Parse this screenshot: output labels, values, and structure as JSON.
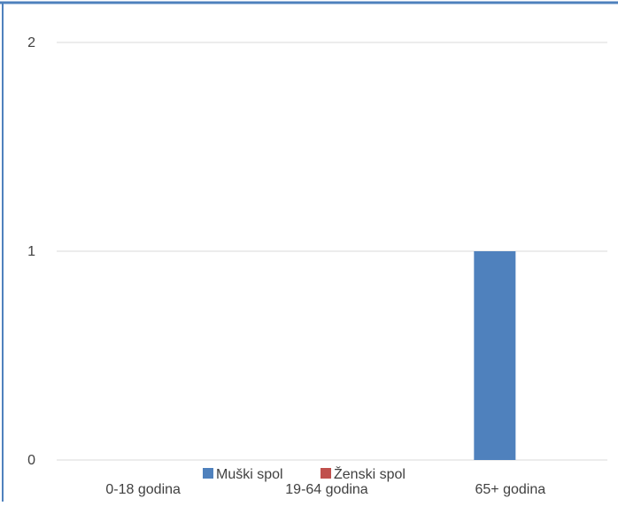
{
  "chart_data": {
    "type": "bar",
    "categories": [
      "0-18 godina",
      "19-64 godina",
      "65+ godina"
    ],
    "series": [
      {
        "name": "Muški spol",
        "values": [
          0,
          0,
          1
        ],
        "color": "#4F81BD"
      },
      {
        "name": "Ženski spol",
        "values": [
          0,
          0,
          0
        ],
        "color": "#C0504D"
      }
    ],
    "y_ticks": [
      "0",
      "1",
      "2"
    ],
    "ylim": [
      0,
      2
    ],
    "grid": true,
    "legend_position": "bottom",
    "title": "",
    "xlabel": "",
    "ylabel": ""
  },
  "colors": {
    "frame_border": "#4F81BD",
    "gridline": "#D9D9D9",
    "text": "#404040"
  }
}
